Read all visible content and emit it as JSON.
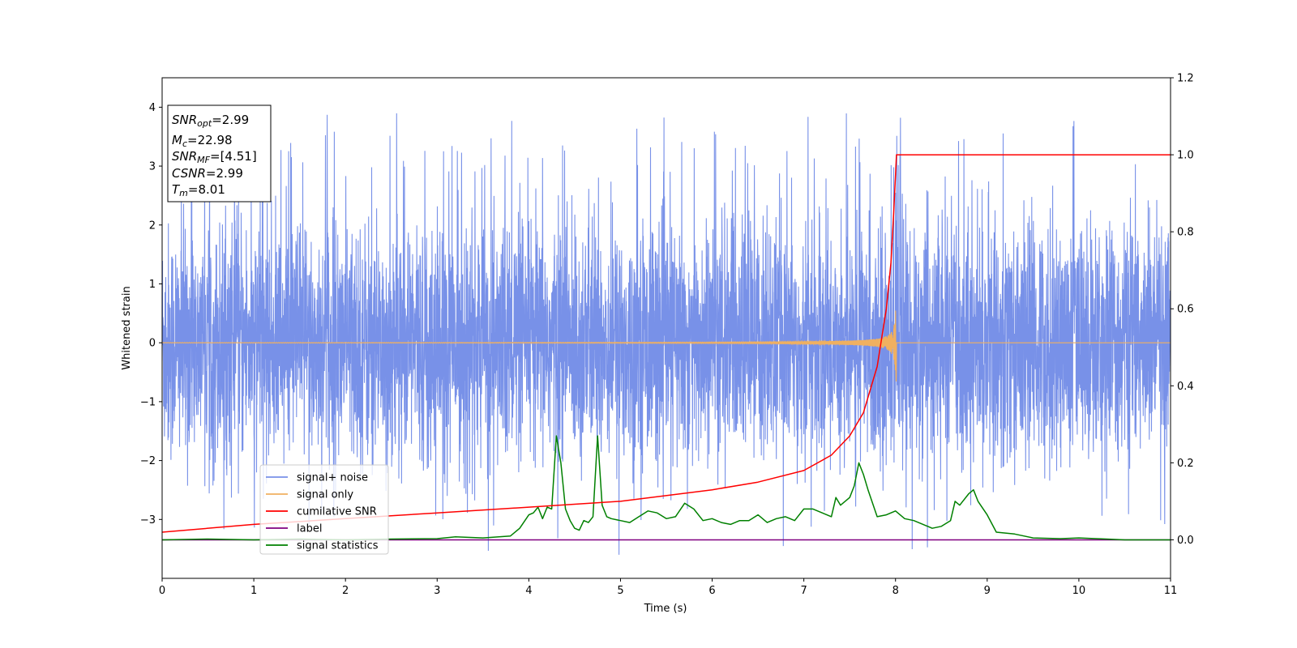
{
  "chart_data": {
    "type": "line",
    "xlabel": "Time (s)",
    "ylabel": "Whitened strain",
    "xlim": [
      0,
      11
    ],
    "ylim": [
      -4,
      4.5
    ],
    "y2lim": [
      -0.1,
      1.2
    ],
    "x_ticks": [
      0,
      1,
      2,
      3,
      4,
      5,
      6,
      7,
      8,
      9,
      10,
      11
    ],
    "y_ticks": [
      4,
      3,
      2,
      1,
      0,
      -1,
      -2,
      -3
    ],
    "y_tick_labels": [
      "4",
      "3",
      "2",
      "1",
      "0",
      "−1",
      "−2",
      "−3"
    ],
    "y2_ticks": [
      1.2,
      1.0,
      0.8,
      0.6,
      0.4,
      0.2,
      0.0
    ],
    "y2_tick_labels": [
      "1.2",
      "1.0",
      "0.8",
      "0.6",
      "0.4",
      "0.2",
      "0.0"
    ],
    "grid": false,
    "legend_position": "lower-left",
    "annotation": {
      "lines": [
        {
          "sym": "SNR",
          "sub": "opt",
          "val": "=2.99"
        },
        {
          "sym": "M",
          "sub": "c",
          "val": "=22.98"
        },
        {
          "sym": "SNR",
          "sub": "MF",
          "val": "=[4.51]"
        },
        {
          "sym": "CSNR",
          "sub": "",
          "val": "=2.99"
        },
        {
          "sym": "T",
          "sub": "m",
          "val": "=8.01"
        }
      ]
    },
    "series": [
      {
        "name": "signal+ noise",
        "color": "#7891e8",
        "axis": "left",
        "description_values": {
          "mean": 0,
          "std": 1,
          "range": [
            -3.6,
            4.0
          ]
        }
      },
      {
        "name": "signal only",
        "color": "#f0b060",
        "axis": "left",
        "chirp": {
          "end_time": 8.01,
          "peak_amplitude": 0.65
        }
      },
      {
        "name": "cumilative SNR",
        "color": "#ff0000",
        "axis": "right",
        "x": [
          0,
          1,
          2,
          3,
          4,
          5,
          6,
          6.5,
          7,
          7.3,
          7.5,
          7.65,
          7.8,
          7.9,
          7.95,
          7.98,
          8.01,
          11
        ],
        "y": [
          0.02,
          0.04,
          0.055,
          0.07,
          0.085,
          0.1,
          0.13,
          0.15,
          0.18,
          0.22,
          0.27,
          0.33,
          0.45,
          0.6,
          0.72,
          0.85,
          1.0,
          1.0
        ]
      },
      {
        "name": "label",
        "color": "#800080",
        "axis": "right",
        "x": [
          0,
          11
        ],
        "y": [
          0.0,
          0.0
        ]
      },
      {
        "name": "signal statistics",
        "color": "#008000",
        "axis": "right",
        "x": [
          0,
          0.5,
          1,
          1.5,
          2,
          2.5,
          3,
          3.2,
          3.5,
          3.8,
          3.9,
          4.0,
          4.05,
          4.1,
          4.15,
          4.2,
          4.25,
          4.3,
          4.35,
          4.4,
          4.45,
          4.5,
          4.55,
          4.6,
          4.65,
          4.7,
          4.75,
          4.8,
          4.85,
          4.9,
          5.0,
          5.1,
          5.2,
          5.3,
          5.4,
          5.5,
          5.6,
          5.7,
          5.8,
          5.9,
          6.0,
          6.1,
          6.2,
          6.3,
          6.4,
          6.5,
          6.6,
          6.7,
          6.8,
          6.9,
          7.0,
          7.1,
          7.2,
          7.3,
          7.35,
          7.4,
          7.5,
          7.55,
          7.6,
          7.65,
          7.7,
          7.8,
          7.9,
          8.0,
          8.1,
          8.2,
          8.3,
          8.4,
          8.5,
          8.6,
          8.65,
          8.7,
          8.8,
          8.85,
          8.9,
          9.0,
          9.1,
          9.3,
          9.5,
          9.8,
          10.0,
          10.3,
          10.5,
          11
        ],
        "y": [
          0.0,
          0.002,
          0.0,
          0.002,
          0.0,
          0.002,
          0.003,
          0.008,
          0.005,
          0.01,
          0.03,
          0.065,
          0.07,
          0.085,
          0.055,
          0.085,
          0.08,
          0.27,
          0.2,
          0.08,
          0.05,
          0.03,
          0.025,
          0.05,
          0.045,
          0.06,
          0.27,
          0.09,
          0.06,
          0.055,
          0.05,
          0.045,
          0.06,
          0.075,
          0.07,
          0.055,
          0.06,
          0.095,
          0.08,
          0.05,
          0.055,
          0.045,
          0.04,
          0.05,
          0.05,
          0.065,
          0.045,
          0.055,
          0.06,
          0.05,
          0.08,
          0.08,
          0.07,
          0.06,
          0.11,
          0.09,
          0.11,
          0.14,
          0.2,
          0.17,
          0.13,
          0.06,
          0.065,
          0.075,
          0.055,
          0.05,
          0.04,
          0.03,
          0.035,
          0.05,
          0.1,
          0.09,
          0.12,
          0.13,
          0.1,
          0.065,
          0.02,
          0.015,
          0.005,
          0.003,
          0.005,
          0.002,
          0.0,
          0.0
        ]
      }
    ]
  }
}
